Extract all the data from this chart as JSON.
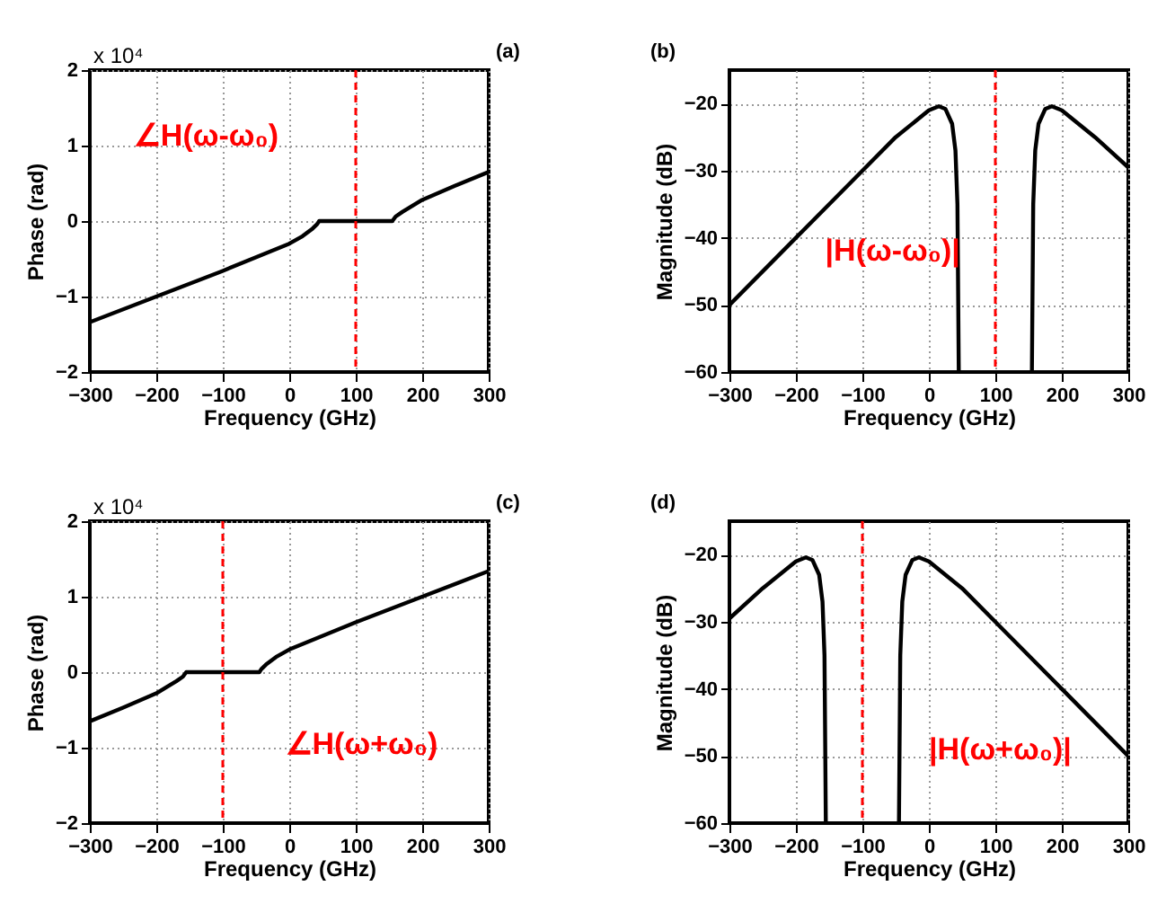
{
  "chart_data": [
    {
      "type": "line",
      "xlabel": "Frequency (GHz)",
      "ylabel": "Phase (rad)",
      "xlim": [
        -300,
        300
      ],
      "xticks": [
        -300,
        -200,
        -100,
        0,
        100,
        200,
        300
      ],
      "ylim": [
        -2,
        2
      ],
      "yticks": [
        -2,
        -1,
        0,
        1,
        2
      ],
      "grid": true,
      "series": [
        {
          "color": "#000000",
          "x": [
            -300,
            -200,
            -100,
            0,
            20,
            35,
            42,
            45,
            100,
            155,
            160,
            170,
            200,
            250,
            300
          ],
          "values": [
            -1.34,
            -1.0,
            -0.66,
            -0.3,
            -0.2,
            -0.1,
            -0.04,
            0,
            0,
            0,
            0.06,
            0.12,
            0.28,
            0.47,
            0.65
          ]
        }
      ],
      "ref_lines": [
        {
          "axis": "x",
          "value": 100,
          "color": "#ff0000",
          "line_style": "dashed"
        }
      ],
      "annotations": [
        "(a)",
        "x 10⁴",
        "∠H(ω-ω₀)"
      ]
    },
    {
      "type": "line",
      "xlabel": "Frequency (GHz)",
      "ylabel": "Magnitude (dB)",
      "xlim": [
        -300,
        300
      ],
      "xticks": [
        -300,
        -200,
        -100,
        0,
        100,
        200,
        300
      ],
      "ylim": [
        -60,
        -15
      ],
      "yticks": [
        -60,
        -50,
        -40,
        -30,
        -20
      ],
      "grid": true,
      "series": [
        {
          "color": "#000000",
          "x": [
            -300,
            -200,
            -100,
            -50,
            0,
            15,
            25,
            35,
            40,
            43,
            45
          ],
          "values": [
            -50,
            -40,
            -30,
            -25,
            -21,
            -20.4,
            -20.8,
            -23,
            -27,
            -35,
            -60
          ]
        },
        {
          "color": "#000000",
          "x": [
            155,
            157,
            160,
            165,
            175,
            185,
            200,
            250,
            300
          ],
          "values": [
            -60,
            -35,
            -27,
            -23,
            -20.8,
            -20.4,
            -21,
            -25,
            -29.5
          ]
        }
      ],
      "ref_lines": [
        {
          "axis": "x",
          "value": 100,
          "color": "#ff0000",
          "line_style": "dashed"
        }
      ],
      "annotations": [
        "(b)",
        "|H(ω-ω₀)|"
      ]
    },
    {
      "type": "line",
      "xlabel": "Frequency (GHz)",
      "ylabel": "Phase (rad)",
      "xlim": [
        -300,
        300
      ],
      "xticks": [
        -300,
        -200,
        -100,
        0,
        100,
        200,
        300
      ],
      "ylim": [
        -2,
        2
      ],
      "yticks": [
        -2,
        -1,
        0,
        1,
        2
      ],
      "grid": true,
      "series": [
        {
          "color": "#000000",
          "x": [
            -300,
            -250,
            -200,
            -170,
            -160,
            -155,
            -100,
            -45,
            -42,
            -35,
            -20,
            0,
            100,
            200,
            300
          ],
          "values": [
            -0.65,
            -0.47,
            -0.28,
            -0.12,
            -0.06,
            0,
            0,
            0,
            0.04,
            0.1,
            0.2,
            0.3,
            0.66,
            1.0,
            1.34
          ]
        }
      ],
      "ref_lines": [
        {
          "axis": "x",
          "value": -100,
          "color": "#ff0000",
          "line_style": "dashed"
        }
      ],
      "annotations": [
        "(c)",
        "x 10⁴",
        "∠H(ω+ω₀)"
      ]
    },
    {
      "type": "line",
      "xlabel": "Frequency (GHz)",
      "ylabel": "Magnitude (dB)",
      "xlim": [
        -300,
        300
      ],
      "xticks": [
        -300,
        -200,
        -100,
        0,
        100,
        200,
        300
      ],
      "ylim": [
        -60,
        -15
      ],
      "yticks": [
        -60,
        -50,
        -40,
        -30,
        -20
      ],
      "grid": true,
      "series": [
        {
          "color": "#000000",
          "x": [
            -300,
            -250,
            -200,
            -185,
            -175,
            -165,
            -160,
            -157,
            -155
          ],
          "values": [
            -29.5,
            -25,
            -21,
            -20.4,
            -20.8,
            -23,
            -27,
            -35,
            -60
          ]
        },
        {
          "color": "#000000",
          "x": [
            -45,
            -43,
            -40,
            -35,
            -25,
            -15,
            0,
            50,
            100,
            200,
            300
          ],
          "values": [
            -60,
            -35,
            -27,
            -23,
            -20.8,
            -20.4,
            -21,
            -25,
            -30,
            -40,
            -50
          ]
        }
      ],
      "ref_lines": [
        {
          "axis": "x",
          "value": -100,
          "color": "#ff0000",
          "line_style": "dashed"
        }
      ],
      "annotations": [
        "(d)",
        "|H(ω+ω₀)|"
      ]
    }
  ]
}
